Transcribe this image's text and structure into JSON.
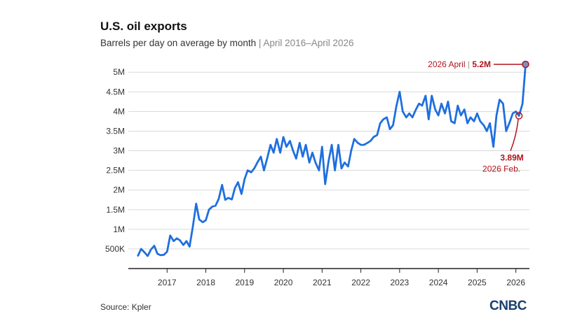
{
  "header": {
    "title": "U.S. oil exports",
    "subtitle_main": "Barrels per day on average by month",
    "subtitle_sep": "|",
    "subtitle_range": "April 2016–April 2026"
  },
  "footer": {
    "source": "Source: Kpler",
    "logo": "CNBC"
  },
  "colors": {
    "line": "#1f6fde",
    "annotation": "#b3131b",
    "grid": "#d9d9d9",
    "axis": "#222222"
  },
  "chart_data": {
    "type": "line",
    "title": "U.S. oil exports",
    "subtitle": "Barrels per day on average by month | April 2016–April 2026",
    "xlabel": "",
    "ylabel": "",
    "ylim": [
      0,
      5200000
    ],
    "xlim": [
      2016.25,
      2026.4
    ],
    "grid": "horizontal",
    "legend": "none",
    "y_ticks": [
      {
        "value": 500000,
        "label": "500K"
      },
      {
        "value": 1000000,
        "label": "1M"
      },
      {
        "value": 1500000,
        "label": "1.5M"
      },
      {
        "value": 2000000,
        "label": "2M"
      },
      {
        "value": 2500000,
        "label": "2.5M"
      },
      {
        "value": 3000000,
        "label": "3M"
      },
      {
        "value": 3500000,
        "label": "3.5M"
      },
      {
        "value": 4000000,
        "label": "4M"
      },
      {
        "value": 4500000,
        "label": "4.5M"
      },
      {
        "value": 5000000,
        "label": "5M"
      }
    ],
    "x_ticks": [
      {
        "value": 2017,
        "label": "2017"
      },
      {
        "value": 2018,
        "label": "2018"
      },
      {
        "value": 2019,
        "label": "2019"
      },
      {
        "value": 2020,
        "label": "2020"
      },
      {
        "value": 2021,
        "label": "2021"
      },
      {
        "value": 2022,
        "label": "2022"
      },
      {
        "value": 2023,
        "label": "2023"
      },
      {
        "value": 2024,
        "label": "2024"
      },
      {
        "value": 2025,
        "label": "2025"
      },
      {
        "value": 2026,
        "label": "2026"
      }
    ],
    "series": [
      {
        "points": [
          [
            2016.25,
            330000
          ],
          [
            2016.33,
            500000
          ],
          [
            2016.42,
            410000
          ],
          [
            2016.5,
            320000
          ],
          [
            2016.58,
            480000
          ],
          [
            2016.67,
            580000
          ],
          [
            2016.75,
            380000
          ],
          [
            2016.83,
            340000
          ],
          [
            2016.92,
            350000
          ],
          [
            2017.0,
            430000
          ],
          [
            2017.08,
            840000
          ],
          [
            2017.17,
            700000
          ],
          [
            2017.25,
            770000
          ],
          [
            2017.33,
            720000
          ],
          [
            2017.42,
            600000
          ],
          [
            2017.5,
            700000
          ],
          [
            2017.58,
            560000
          ],
          [
            2017.67,
            1100000
          ],
          [
            2017.75,
            1650000
          ],
          [
            2017.83,
            1250000
          ],
          [
            2017.92,
            1180000
          ],
          [
            2018.0,
            1230000
          ],
          [
            2018.08,
            1500000
          ],
          [
            2018.17,
            1580000
          ],
          [
            2018.25,
            1600000
          ],
          [
            2018.33,
            1770000
          ],
          [
            2018.42,
            2130000
          ],
          [
            2018.5,
            1750000
          ],
          [
            2018.58,
            1800000
          ],
          [
            2018.67,
            1760000
          ],
          [
            2018.75,
            2050000
          ],
          [
            2018.83,
            2200000
          ],
          [
            2018.92,
            1900000
          ],
          [
            2019.0,
            2280000
          ],
          [
            2019.08,
            2500000
          ],
          [
            2019.17,
            2450000
          ],
          [
            2019.25,
            2550000
          ],
          [
            2019.33,
            2700000
          ],
          [
            2019.42,
            2850000
          ],
          [
            2019.5,
            2500000
          ],
          [
            2019.58,
            2800000
          ],
          [
            2019.67,
            3150000
          ],
          [
            2019.75,
            2950000
          ],
          [
            2019.83,
            3300000
          ],
          [
            2019.92,
            2950000
          ],
          [
            2020.0,
            3350000
          ],
          [
            2020.08,
            3100000
          ],
          [
            2020.17,
            3250000
          ],
          [
            2020.25,
            3000000
          ],
          [
            2020.33,
            2800000
          ],
          [
            2020.42,
            3200000
          ],
          [
            2020.5,
            2850000
          ],
          [
            2020.58,
            3150000
          ],
          [
            2020.67,
            2700000
          ],
          [
            2020.75,
            2950000
          ],
          [
            2020.83,
            2700000
          ],
          [
            2020.92,
            2500000
          ],
          [
            2021.0,
            3100000
          ],
          [
            2021.08,
            2150000
          ],
          [
            2021.17,
            2750000
          ],
          [
            2021.25,
            3150000
          ],
          [
            2021.33,
            2500000
          ],
          [
            2021.42,
            3150000
          ],
          [
            2021.5,
            2550000
          ],
          [
            2021.58,
            2700000
          ],
          [
            2021.67,
            2600000
          ],
          [
            2021.75,
            3000000
          ],
          [
            2021.83,
            3300000
          ],
          [
            2021.92,
            3200000
          ],
          [
            2022.0,
            3150000
          ],
          [
            2022.08,
            3150000
          ],
          [
            2022.17,
            3200000
          ],
          [
            2022.25,
            3250000
          ],
          [
            2022.33,
            3350000
          ],
          [
            2022.42,
            3400000
          ],
          [
            2022.5,
            3700000
          ],
          [
            2022.58,
            3800000
          ],
          [
            2022.67,
            3850000
          ],
          [
            2022.75,
            3550000
          ],
          [
            2022.83,
            3650000
          ],
          [
            2022.92,
            4150000
          ],
          [
            2023.0,
            4500000
          ],
          [
            2023.08,
            4000000
          ],
          [
            2023.17,
            3850000
          ],
          [
            2023.25,
            3950000
          ],
          [
            2023.33,
            3850000
          ],
          [
            2023.42,
            4050000
          ],
          [
            2023.5,
            4200000
          ],
          [
            2023.58,
            4150000
          ],
          [
            2023.67,
            4400000
          ],
          [
            2023.75,
            3800000
          ],
          [
            2023.83,
            4400000
          ],
          [
            2023.92,
            4050000
          ],
          [
            2024.0,
            3900000
          ],
          [
            2024.08,
            4200000
          ],
          [
            2024.17,
            3950000
          ],
          [
            2024.25,
            4250000
          ],
          [
            2024.33,
            3750000
          ],
          [
            2024.42,
            3700000
          ],
          [
            2024.5,
            4150000
          ],
          [
            2024.58,
            3900000
          ],
          [
            2024.67,
            4050000
          ],
          [
            2024.75,
            3700000
          ],
          [
            2024.83,
            3850000
          ],
          [
            2024.92,
            3750000
          ],
          [
            2025.0,
            3950000
          ],
          [
            2025.08,
            3750000
          ],
          [
            2025.17,
            3650000
          ],
          [
            2025.25,
            3500000
          ],
          [
            2025.33,
            3700000
          ],
          [
            2025.42,
            3100000
          ],
          [
            2025.5,
            3900000
          ],
          [
            2025.58,
            4300000
          ],
          [
            2025.67,
            4200000
          ],
          [
            2025.75,
            3500000
          ],
          [
            2025.83,
            3700000
          ],
          [
            2025.92,
            3950000
          ],
          [
            2026.0,
            4000000
          ],
          [
            2026.08,
            3890000
          ],
          [
            2026.17,
            4200000
          ],
          [
            2026.25,
            5200000
          ]
        ]
      }
    ],
    "annotations": [
      {
        "label": "2026 April",
        "sep": "|",
        "value_label": "5.2M",
        "x": 2026.25,
        "y": 5200000,
        "side": "left"
      },
      {
        "label": "2026 Feb.",
        "value_label": "3.89M",
        "x": 2026.08,
        "y": 3890000,
        "side": "below"
      }
    ]
  }
}
